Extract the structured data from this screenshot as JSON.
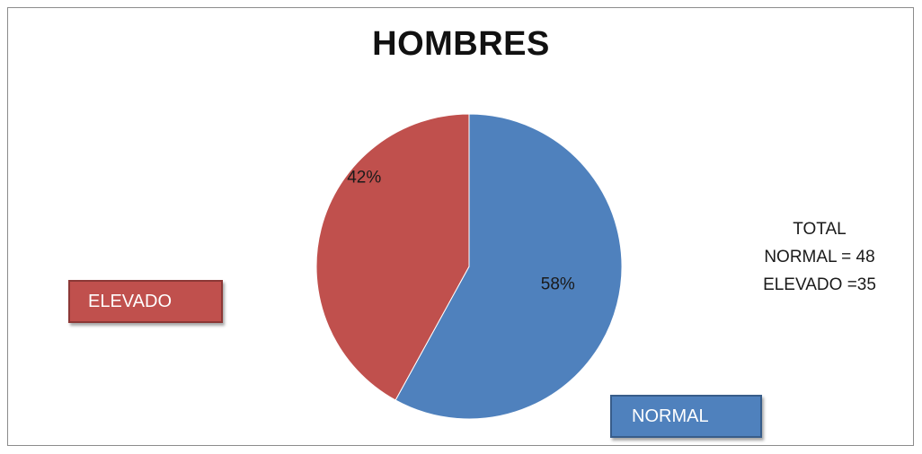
{
  "chart_data": {
    "type": "pie",
    "title": "HOMBRES",
    "slices": [
      {
        "name": "NORMAL",
        "value": 58,
        "label": "58%",
        "color": "#4f81bd"
      },
      {
        "name": "ELEVADO",
        "value": 42,
        "label": "42%",
        "color": "#c0504d"
      }
    ],
    "legend": [
      "ELEVADO",
      "NORMAL"
    ]
  },
  "totals": {
    "heading": "TOTAL",
    "normal": "NORMAL = 48",
    "elevado": "ELEVADO =35"
  }
}
